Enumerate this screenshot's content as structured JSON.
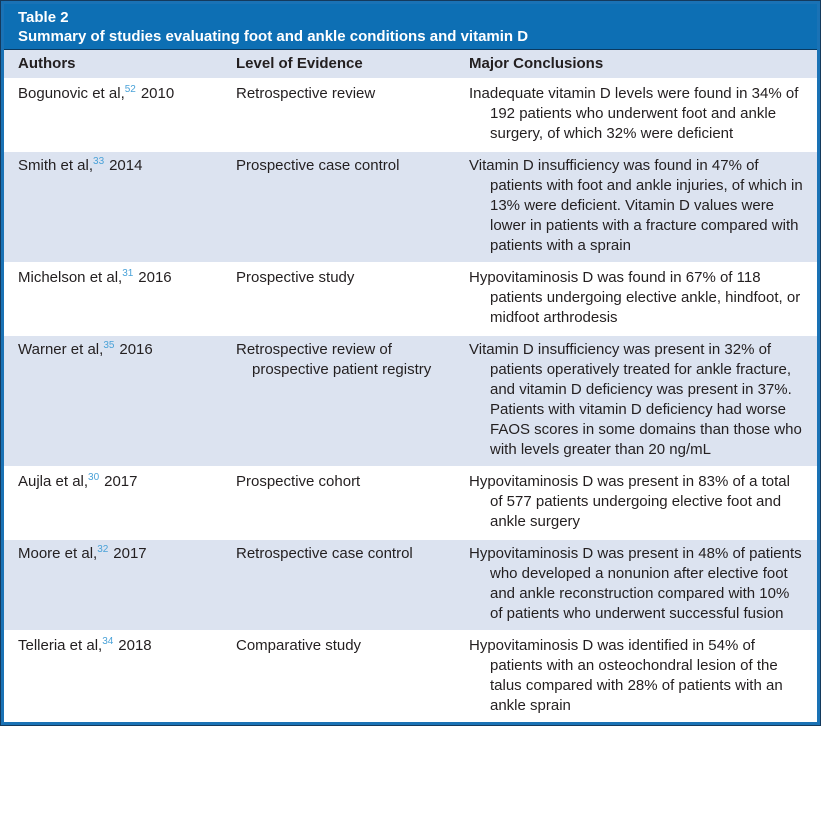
{
  "table": {
    "label": "Table 2",
    "title": "Summary of studies evaluating foot and ankle conditions and vitamin D",
    "columns": [
      "Authors",
      "Level of Evidence",
      "Major Conclusions"
    ],
    "rows": [
      {
        "author": "Bogunovic et al,",
        "citation": "52",
        "year": "2010",
        "evidence": "Retrospective review",
        "conclusion": "Inadequate vitamin D levels were found in 34% of 192 patients who underwent foot and ankle surgery, of which 32% were deficient"
      },
      {
        "author": "Smith et al,",
        "citation": "33",
        "year": "2014",
        "evidence": "Prospective case control",
        "conclusion": "Vitamin D insufficiency was found in 47% of patients with foot and ankle injuries, of which in 13% were deficient. Vitamin D values were lower in patients with a fracture compared with patients with a sprain"
      },
      {
        "author": "Michelson et al,",
        "citation": "31",
        "year": "2016",
        "evidence": "Prospective study",
        "conclusion": "Hypovitaminosis D was found in 67% of 118 patients undergoing elective ankle, hindfoot, or midfoot arthrodesis"
      },
      {
        "author": "Warner et al,",
        "citation": "35",
        "year": "2016",
        "evidence": "Retrospective review of prospective patient registry",
        "conclusion": "Vitamin D insufficiency was present in 32% of patients operatively treated for ankle fracture, and vitamin D deficiency was present in 37%. Patients with vitamin D deficiency had worse FAOS scores in some domains than those who with levels greater than 20 ng/mL"
      },
      {
        "author": "Aujla et al,",
        "citation": "30",
        "year": "2017",
        "evidence": "Prospective cohort",
        "conclusion": "Hypovitaminosis D was present in 83% of a total of 577 patients undergoing elective foot and ankle surgery"
      },
      {
        "author": "Moore et al,",
        "citation": "32",
        "year": "2017",
        "evidence": "Retrospective case control",
        "conclusion": "Hypovitaminosis D was present in 48% of patients who developed a nonunion after elective foot and ankle reconstruction compared with 10% of patients who underwent successful fusion"
      },
      {
        "author": "Telleria et al,",
        "citation": "34",
        "year": "2018",
        "evidence": "Comparative study",
        "conclusion": "Hypovitaminosis D was identified in 54% of patients with an osteochondral lesion of the talus compared with 28% of patients with an ankle sprain"
      }
    ],
    "colors": {
      "header_bar": "#0d6fb4",
      "header_bar_text": "#ffffff",
      "border": "#1a72b5",
      "border_outer": "#143a5d",
      "row_alt": "#dce3f0",
      "row_default": "#ffffff",
      "citation_link": "#4aa2d8",
      "text": "#231f20"
    }
  }
}
